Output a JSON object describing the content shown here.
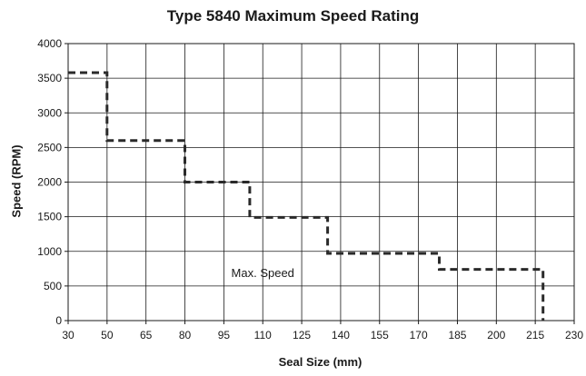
{
  "chart_data": {
    "type": "line",
    "title": "Type 5840 Maximum Speed Rating",
    "xlabel": "Seal Size (mm)",
    "ylabel": "Speed (RPM)",
    "x_tick_labels": [
      "30",
      "50",
      "65",
      "80",
      "95",
      "110",
      "125",
      "140",
      "155",
      "170",
      "185",
      "200",
      "215",
      "230"
    ],
    "y_ticks": [
      0,
      500,
      1000,
      1500,
      2000,
      2500,
      3000,
      3500,
      4000
    ],
    "ylim": [
      0,
      4000
    ],
    "grid": "horizontal",
    "line_style": "dashed",
    "line_color": "#2a2a2a",
    "series": [
      {
        "x": [
          30,
          50,
          50,
          80,
          80,
          105,
          105,
          135,
          135,
          178,
          178,
          218,
          218
        ],
        "y": [
          3580,
          3580,
          2600,
          2600,
          2000,
          2000,
          1490,
          1490,
          970,
          970,
          740,
          740,
          0
        ]
      }
    ],
    "annotations": [
      {
        "text": "Max. Speed",
        "x": 110,
        "y": 630
      }
    ]
  }
}
